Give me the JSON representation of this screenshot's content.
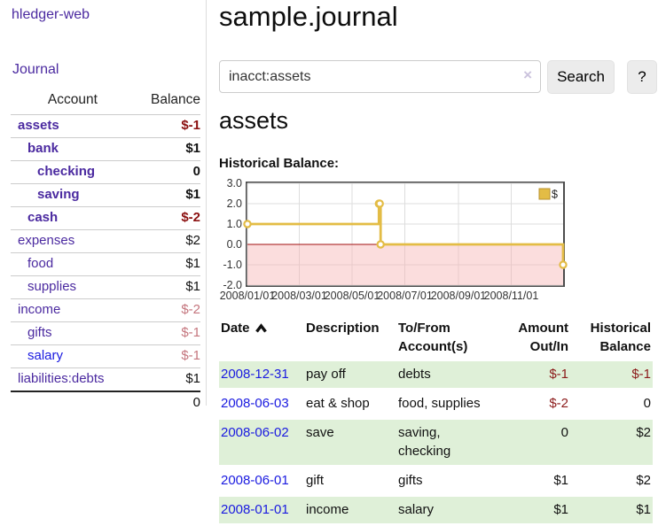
{
  "app": {
    "title": "hledger-web",
    "nav_journal": "Journal"
  },
  "sidebar": {
    "header": {
      "account": "Account",
      "balance": "Balance"
    },
    "accounts": [
      {
        "name": "assets",
        "indent": 1,
        "bold": true,
        "balance": "$-1",
        "balance_style": "neg-strong"
      },
      {
        "name": "bank",
        "indent": 2,
        "bold": true,
        "balance": "$1",
        "balance_style": "pos"
      },
      {
        "name": "checking",
        "indent": 3,
        "bold": true,
        "balance": "0",
        "balance_style": "pos"
      },
      {
        "name": "saving",
        "indent": 3,
        "bold": true,
        "balance": "$1",
        "balance_style": "pos"
      },
      {
        "name": "cash",
        "indent": 2,
        "bold": true,
        "balance": "$-2",
        "balance_style": "neg-strong"
      },
      {
        "name": "expenses",
        "indent": 1,
        "bold": false,
        "balance": "$2",
        "balance_style": "pos"
      },
      {
        "name": "food",
        "indent": 2,
        "bold": false,
        "balance": "$1",
        "balance_style": "pos"
      },
      {
        "name": "supplies",
        "indent": 2,
        "bold": false,
        "balance": "$1",
        "balance_style": "pos"
      },
      {
        "name": "income",
        "indent": 1,
        "bold": false,
        "balance": "$-2",
        "balance_style": "neg-soft"
      },
      {
        "name": "gifts",
        "indent": 2,
        "bold": false,
        "balance": "$-1",
        "balance_style": "neg-soft"
      },
      {
        "name": "salary",
        "indent": 2,
        "bold": false,
        "link_color": "blue",
        "balance": "$-1",
        "balance_style": "neg-soft"
      },
      {
        "name": "liabilities:debts",
        "indent": 1,
        "bold": false,
        "balance": "$1",
        "balance_style": "pos"
      }
    ],
    "total": "0"
  },
  "header": {
    "title": "sample.journal"
  },
  "search": {
    "value": "inacct:assets",
    "clear_icon": "×",
    "button": "Search",
    "help_button": "?"
  },
  "account_page": {
    "title": "assets",
    "chart_label": "Historical Balance:"
  },
  "chart_data": {
    "type": "line",
    "step": true,
    "title": "Historical Balance:",
    "series": [
      {
        "name": "$",
        "points": [
          [
            "2008-01-01",
            1
          ],
          [
            "2008-06-01",
            2
          ],
          [
            "2008-06-02",
            2
          ],
          [
            "2008-06-03",
            0
          ],
          [
            "2008-12-31",
            -1
          ]
        ]
      }
    ],
    "ylim": [
      -2.0,
      3.0
    ],
    "ytick_labels": [
      "3.0",
      "2.0",
      "1.0",
      "0.0",
      "-1.0",
      "-2.0"
    ],
    "xtick_labels": [
      "2008/01/01",
      "2008/03/01",
      "2008/05/01",
      "2008/07/01",
      "2008/09/01",
      "2008/11/01"
    ],
    "x_range": [
      "2008-01-01",
      "2008-12-31"
    ],
    "legend": "$",
    "legend_position": "top-right",
    "grid": true,
    "line_color": "#e3bc45",
    "marker_fill": "#ffffff",
    "negative_fill": "#f6b4b4",
    "zero_line_color": "#a01010",
    "grid_color": "#dddddd",
    "border_color": "#4d4d4d"
  },
  "register": {
    "columns": {
      "date": "Date",
      "description": "Description",
      "account": "To/From Account(s)",
      "amount": "Amount Out/In",
      "balance": "Historical Balance"
    },
    "sort": {
      "column": "date",
      "direction": "asc"
    },
    "rows": [
      {
        "date": "2008-12-31",
        "description": "pay off",
        "accounts": "debts",
        "amount": "$-1",
        "balance": "$-1"
      },
      {
        "date": "2008-06-03",
        "description": "eat & shop",
        "accounts": "food, supplies",
        "amount": "$-2",
        "balance": "0"
      },
      {
        "date": "2008-06-02",
        "description": "save",
        "accounts": "saving, checking",
        "amount": "0",
        "balance": "$2"
      },
      {
        "date": "2008-06-01",
        "description": "gift",
        "accounts": "gifts",
        "amount": "$1",
        "balance": "$2"
      },
      {
        "date": "2008-01-01",
        "description": "income",
        "accounts": "salary",
        "amount": "$1",
        "balance": "$1"
      }
    ]
  },
  "colors": {
    "accent_purple": "#4b2aa0",
    "link_blue": "#1a1ae0",
    "negative_dark": "#8b1a1a",
    "negative_soft": "#c4757d",
    "row_green": "#dff0d8",
    "chart_gold": "#e3bc45"
  }
}
